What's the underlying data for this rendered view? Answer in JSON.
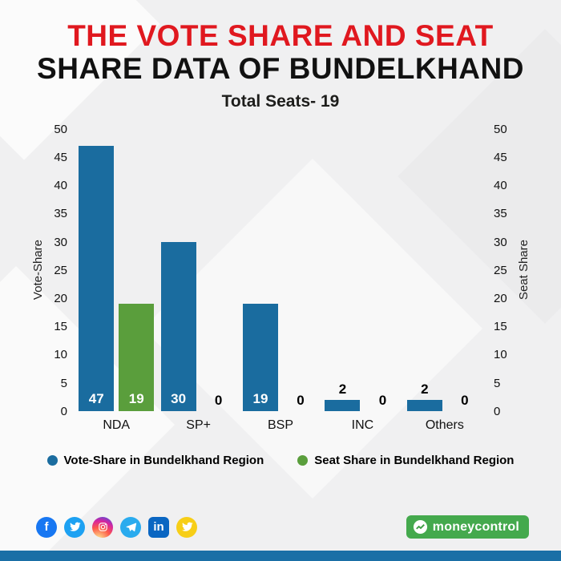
{
  "header": {
    "title_line1": "THE VOTE SHARE AND SEAT",
    "title_line2": "SHARE DATA OF BUNDELKHAND",
    "subtitle": "Total Seats- 19"
  },
  "chart_data": {
    "type": "bar",
    "categories": [
      "NDA",
      "SP+",
      "BSP",
      "INC",
      "Others"
    ],
    "series": [
      {
        "name": "Vote-Share in Bundelkhand Region",
        "color": "#1a6c9f",
        "values": [
          47,
          30,
          19,
          2,
          2
        ]
      },
      {
        "name": "Seat Share in Bundelkhand Region",
        "color": "#5a9e3c",
        "values": [
          19,
          0,
          0,
          0,
          0
        ]
      }
    ],
    "title": "THE VOTE SHARE AND SEAT SHARE DATA OF BUNDELKHAND",
    "subtitle": "Total Seats- 19",
    "ylabel_left": "Vote-Share",
    "ylabel_right": "Seat Share",
    "ylim": [
      0,
      50
    ],
    "ytick_step": 5,
    "grid": false,
    "legend_position": "bottom"
  },
  "footer": {
    "brand": "moneycontrol",
    "icons": [
      {
        "name": "facebook-icon",
        "glyph": "f",
        "bg": "#1877f2"
      },
      {
        "name": "twitter-icon",
        "glyph": "",
        "bg": "#1da1f2"
      },
      {
        "name": "instagram-icon",
        "glyph": "",
        "bg": "gradient"
      },
      {
        "name": "telegram-icon",
        "glyph": "",
        "bg": "#2aabee"
      },
      {
        "name": "linkedin-icon",
        "glyph": "in",
        "bg": "#0a66c2"
      },
      {
        "name": "koo-icon",
        "glyph": "",
        "bg": "#f7ce17"
      }
    ]
  },
  "colors": {
    "title_red": "#e0181f",
    "title_black": "#111111",
    "bar_blue": "#1a6c9f",
    "bar_green": "#5a9e3c",
    "brand_green": "#44a94d",
    "bottom_strip_blue": "#1a6fa6",
    "background": "#f0f0f1"
  }
}
